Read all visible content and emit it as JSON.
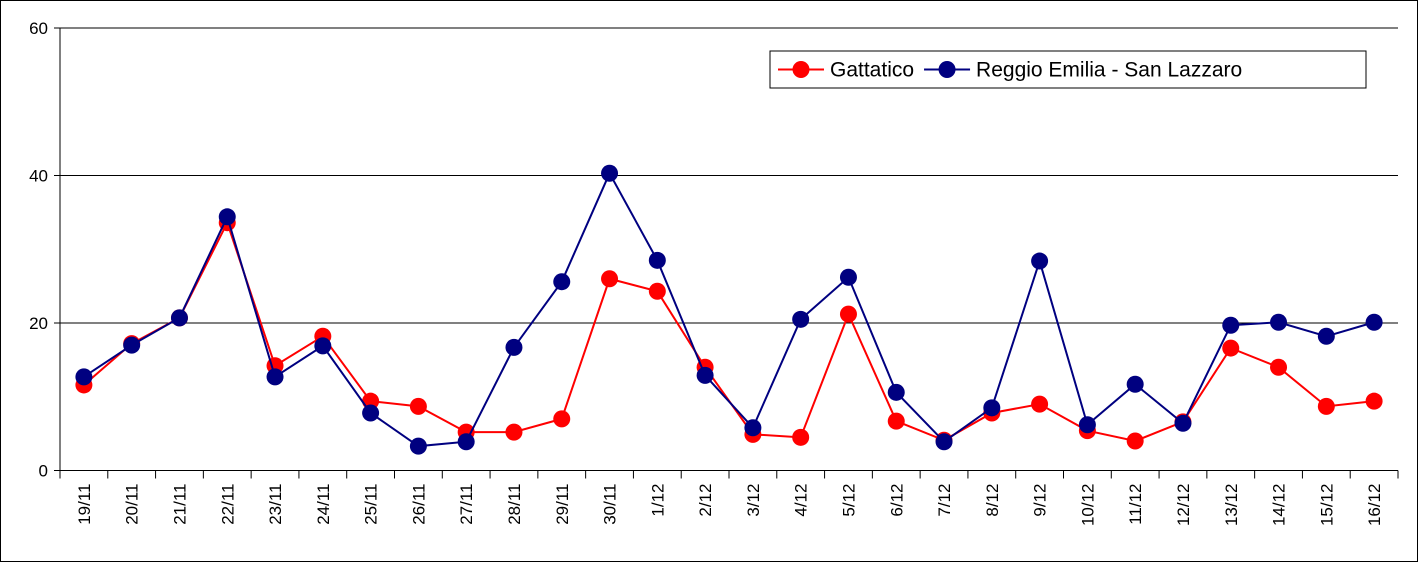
{
  "chart_data": {
    "type": "line",
    "categories": [
      "19/11",
      "20/11",
      "21/11",
      "22/11",
      "23/11",
      "24/11",
      "25/11",
      "26/11",
      "27/11",
      "28/11",
      "29/11",
      "30/11",
      "1/12",
      "2/12",
      "3/12",
      "4/12",
      "5/12",
      "6/12",
      "7/12",
      "8/12",
      "9/12",
      "10/12",
      "11/12",
      "12/12",
      "13/12",
      "14/12",
      "15/12",
      "16/12"
    ],
    "series": [
      {
        "name": "Gattatico",
        "color": "#ff0000",
        "values": [
          11.6,
          17.2,
          20.7,
          33.6,
          14.2,
          18.2,
          9.4,
          8.7,
          5.2,
          5.2,
          7.0,
          26.0,
          24.3,
          14.0,
          4.9,
          4.5,
          21.2,
          6.7,
          4.1,
          7.8,
          9.0,
          5.4,
          4.0,
          6.6,
          16.6,
          14.0,
          8.7,
          9.4
        ]
      },
      {
        "name": "Reggio Emilia - San Lazzaro",
        "color": "#000080",
        "values": [
          12.7,
          17.0,
          20.7,
          34.4,
          12.7,
          16.9,
          7.8,
          3.3,
          3.9,
          16.7,
          25.6,
          40.3,
          28.5,
          12.9,
          5.8,
          20.5,
          26.2,
          10.6,
          3.9,
          8.5,
          28.4,
          6.2,
          11.7,
          6.4,
          19.7,
          20.1,
          18.2,
          20.1
        ]
      }
    ],
    "ylim": [
      0,
      60
    ],
    "yticks": [
      0,
      20,
      40,
      60
    ],
    "grid": true,
    "legend": "upper right"
  }
}
